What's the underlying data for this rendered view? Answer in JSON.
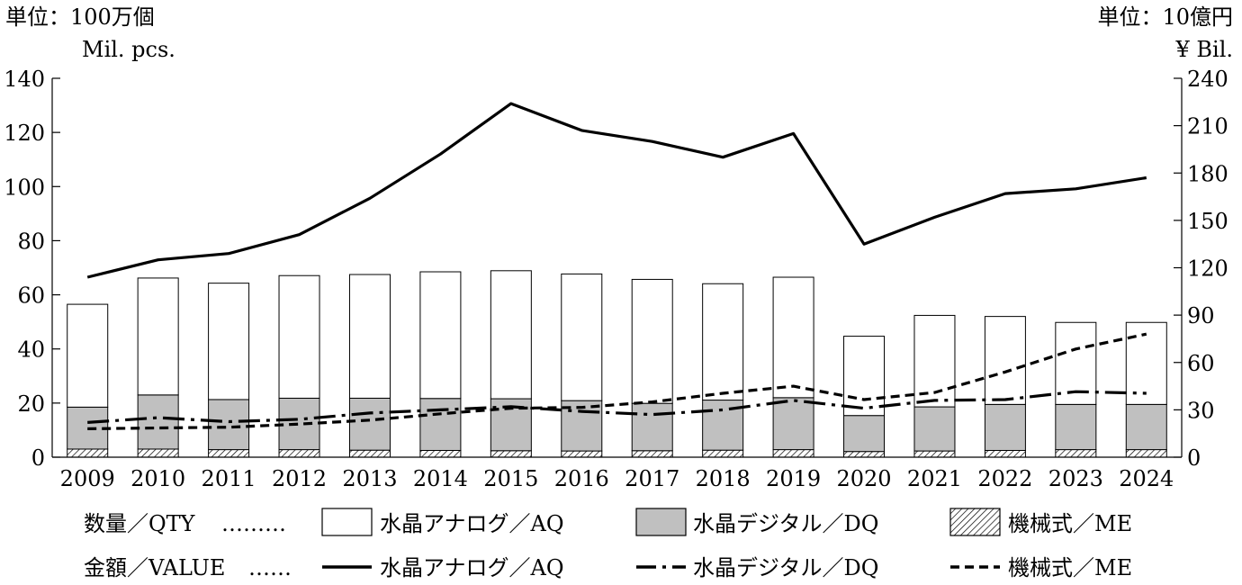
{
  "units": {
    "left_jp": "単位：100万個",
    "left_en": "Mil. pcs.",
    "right_jp": "単位：10億円",
    "right_en": "¥ Bil."
  },
  "chart_data": {
    "type": "bar",
    "categories": [
      "2009",
      "2010",
      "2011",
      "2012",
      "2013",
      "2014",
      "2015",
      "2016",
      "2017",
      "2018",
      "2019",
      "2020",
      "2021",
      "2022",
      "2023",
      "2024"
    ],
    "left_axis": {
      "ylim": [
        0,
        140
      ],
      "ticks": [
        0,
        20,
        40,
        60,
        80,
        100,
        120,
        140
      ]
    },
    "right_axis": {
      "ylim": [
        0,
        240
      ],
      "ticks": [
        0,
        30,
        60,
        90,
        120,
        150,
        180,
        210,
        240
      ]
    },
    "bar_series": [
      {
        "key": "me",
        "color": "hatch",
        "values": [
          3,
          3,
          2.8,
          2.8,
          2.6,
          2.5,
          2.4,
          2.3,
          2.4,
          2.6,
          2.8,
          2.1,
          2.3,
          2.5,
          2.8,
          2.8
        ]
      },
      {
        "key": "dq",
        "color": "#c0c0c0",
        "values": [
          15.5,
          20,
          18.5,
          19,
          19.2,
          19.2,
          19.2,
          18.6,
          17.5,
          18.5,
          19.2,
          13.3,
          16.3,
          17,
          16.7,
          16.7
        ]
      },
      {
        "key": "aq",
        "color": "#ffffff",
        "values": [
          38,
          43.2,
          43,
          45.3,
          45.7,
          46.8,
          47.3,
          46.8,
          45.8,
          43,
          44.5,
          29.3,
          33.8,
          32.5,
          30.3,
          30.3
        ]
      }
    ],
    "line_series": [
      {
        "key": "aq",
        "style": "solid",
        "values": [
          114,
          125,
          129,
          141,
          164,
          192,
          224,
          207,
          200,
          190,
          205,
          135,
          152,
          167,
          170,
          177
        ]
      },
      {
        "key": "dq",
        "style": "dashdot",
        "values": [
          22,
          25,
          22.5,
          24,
          28,
          30,
          32,
          29,
          27,
          30,
          36,
          31,
          36,
          36.5,
          41.5,
          40.5
        ]
      },
      {
        "key": "me",
        "style": "dashed",
        "values": [
          18,
          18.5,
          19,
          21,
          23.5,
          27.5,
          31,
          31.5,
          35,
          40.5,
          45,
          36.5,
          41,
          54,
          68.5,
          78
        ]
      }
    ]
  },
  "legend": {
    "qty_label": "数量／QTY",
    "value_label": "金額／VALUE",
    "qty_dots": "………",
    "value_dots": "……",
    "aq": "水晶アナログ／AQ",
    "dq": "水晶デジタル／DQ",
    "me": "機械式／ME"
  }
}
